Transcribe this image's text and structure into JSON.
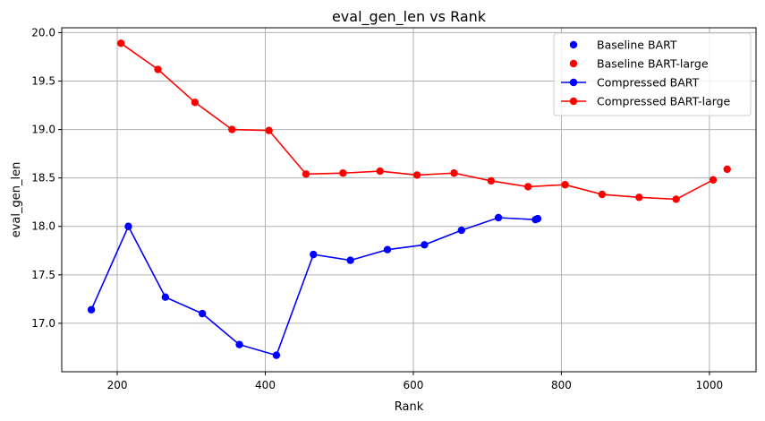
{
  "chart_data": {
    "type": "line",
    "title": "eval_gen_len vs Rank",
    "xlabel": "Rank",
    "ylabel": "eval_gen_len",
    "xlim": [
      125,
      1063
    ],
    "ylim": [
      16.5,
      20.05
    ],
    "xticks": [
      200,
      400,
      600,
      800,
      1000
    ],
    "yticks": [
      17.0,
      17.5,
      18.0,
      18.5,
      19.0,
      19.5,
      20.0
    ],
    "grid": true,
    "legend_position": "top-right",
    "series": [
      {
        "name": "Baseline BART",
        "kind": "scatter",
        "color": "#0000ff",
        "x": [
          768
        ],
        "y": [
          18.08
        ]
      },
      {
        "name": "Baseline BART-large",
        "kind": "scatter",
        "color": "#ff0000",
        "x": [
          1024
        ],
        "y": [
          18.59
        ]
      },
      {
        "name": "Compressed BART",
        "kind": "line",
        "color": "#0000ff",
        "x": [
          165,
          215,
          265,
          315,
          365,
          415,
          465,
          515,
          565,
          615,
          665,
          715,
          765
        ],
        "y": [
          17.14,
          18.0,
          17.27,
          17.1,
          16.78,
          16.67,
          17.71,
          17.65,
          17.76,
          17.81,
          17.96,
          18.09,
          18.07
        ]
      },
      {
        "name": "Compressed BART-large",
        "kind": "line",
        "color": "#ff0000",
        "x": [
          205,
          255,
          305,
          355,
          405,
          455,
          505,
          555,
          605,
          655,
          705,
          755,
          805,
          855,
          905,
          955,
          1005
        ],
        "y": [
          19.89,
          19.62,
          19.28,
          19.0,
          18.99,
          18.54,
          18.55,
          18.57,
          18.53,
          18.55,
          18.47,
          18.41,
          18.43,
          18.33,
          18.3,
          18.28,
          18.48
        ]
      }
    ]
  }
}
